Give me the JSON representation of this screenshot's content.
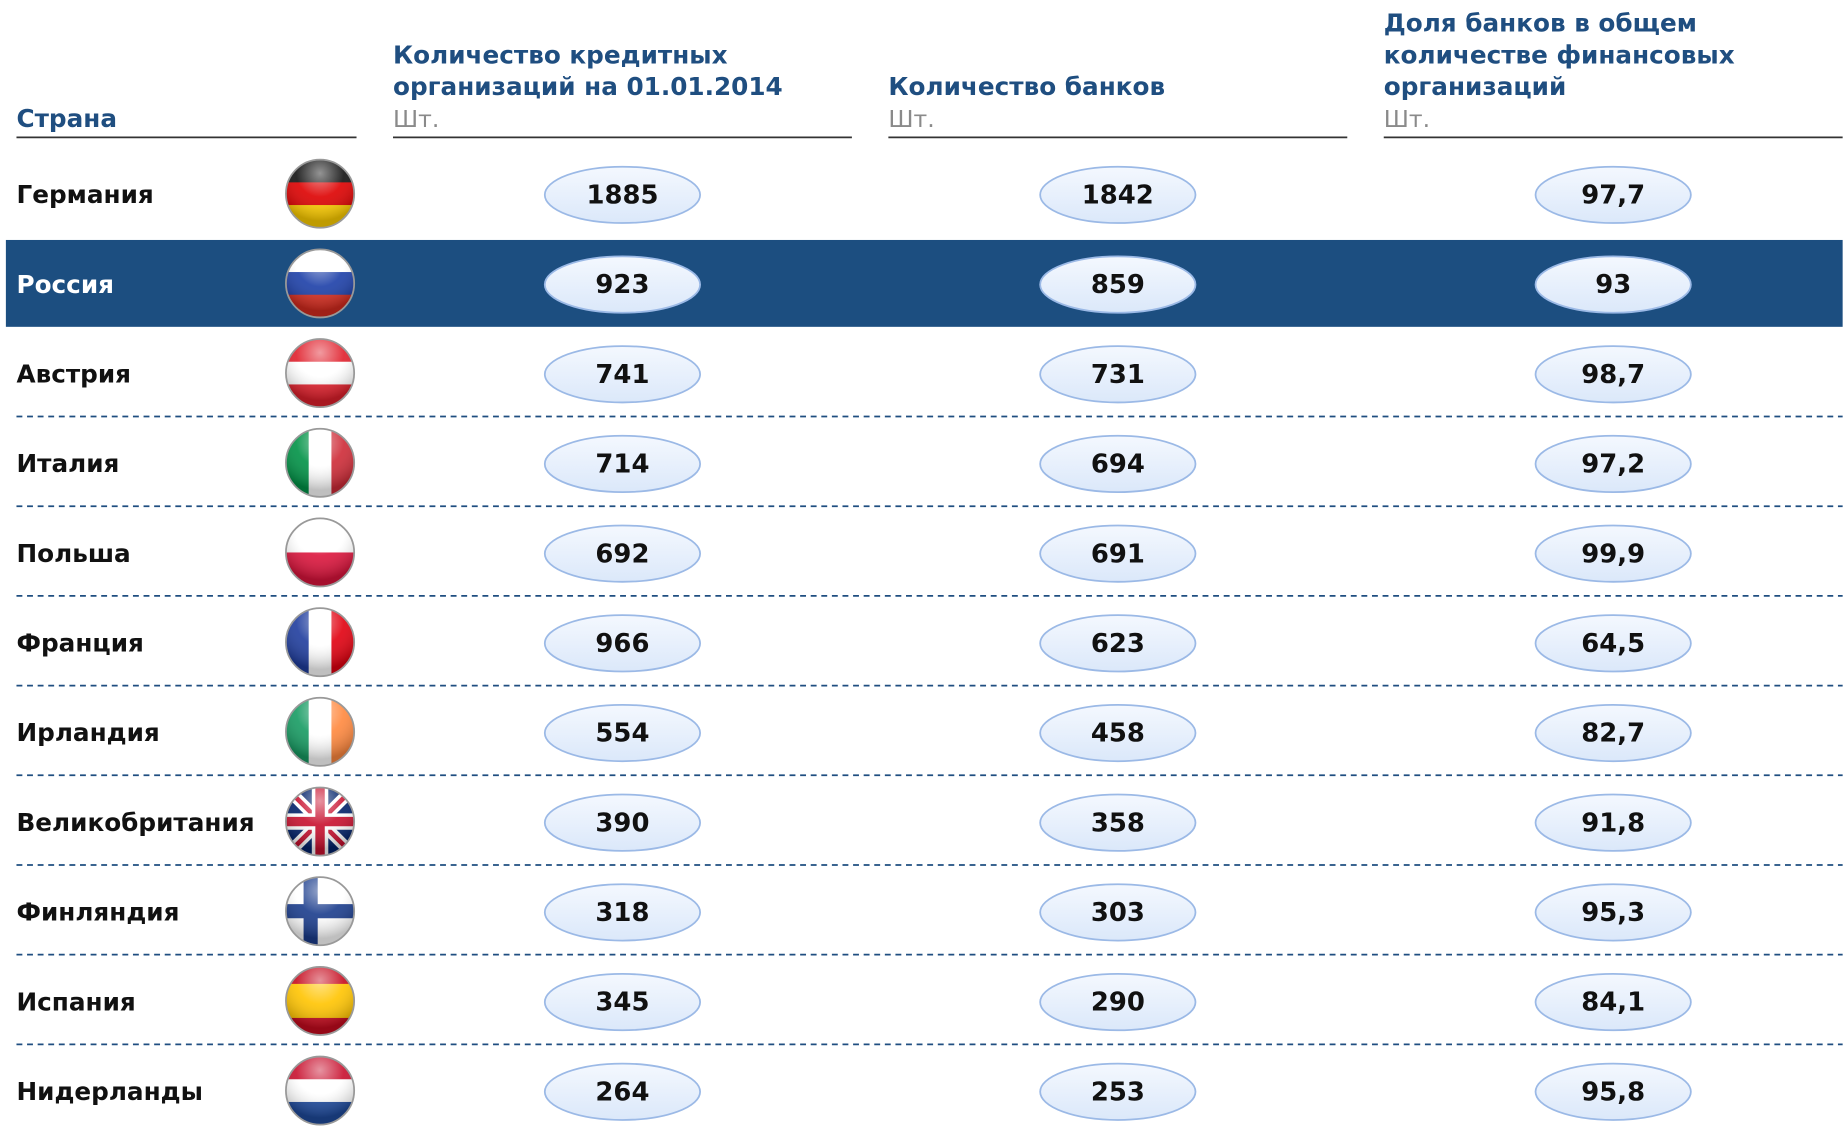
{
  "table": {
    "columns": [
      {
        "title_lines": [
          "Страна"
        ]
      },
      {
        "title_lines": [
          "Количество кредитных",
          "организаций на 01.01.2014"
        ],
        "unit": "Шт."
      },
      {
        "title_lines": [
          "Количество банков"
        ],
        "unit": "Шт."
      },
      {
        "title_lines": [
          "Доля банков в общем",
          "количестве финансовых",
          "организаций"
        ],
        "unit": "Шт."
      }
    ],
    "rows": [
      [
        "Германия",
        "1885",
        "1842",
        "97,7"
      ],
      [
        "Россия",
        "923",
        "859",
        "93"
      ],
      [
        "Австрия",
        "741",
        "731",
        "98,7"
      ],
      [
        "Италия",
        "714",
        "694",
        "97,2"
      ],
      [
        "Польша",
        "692",
        "691",
        "99,9"
      ],
      [
        "Франция",
        "966",
        "623",
        "64,5"
      ],
      [
        "Ирландия",
        "554",
        "458",
        "82,7"
      ],
      [
        "Великобритания",
        "390",
        "358",
        "91,8"
      ],
      [
        "Финляндия",
        "318",
        "303",
        "95,3"
      ],
      [
        "Испания",
        "345",
        "290",
        "84,1"
      ],
      [
        "Нидерланды",
        "264",
        "253",
        "95,8"
      ]
    ]
  }
}
